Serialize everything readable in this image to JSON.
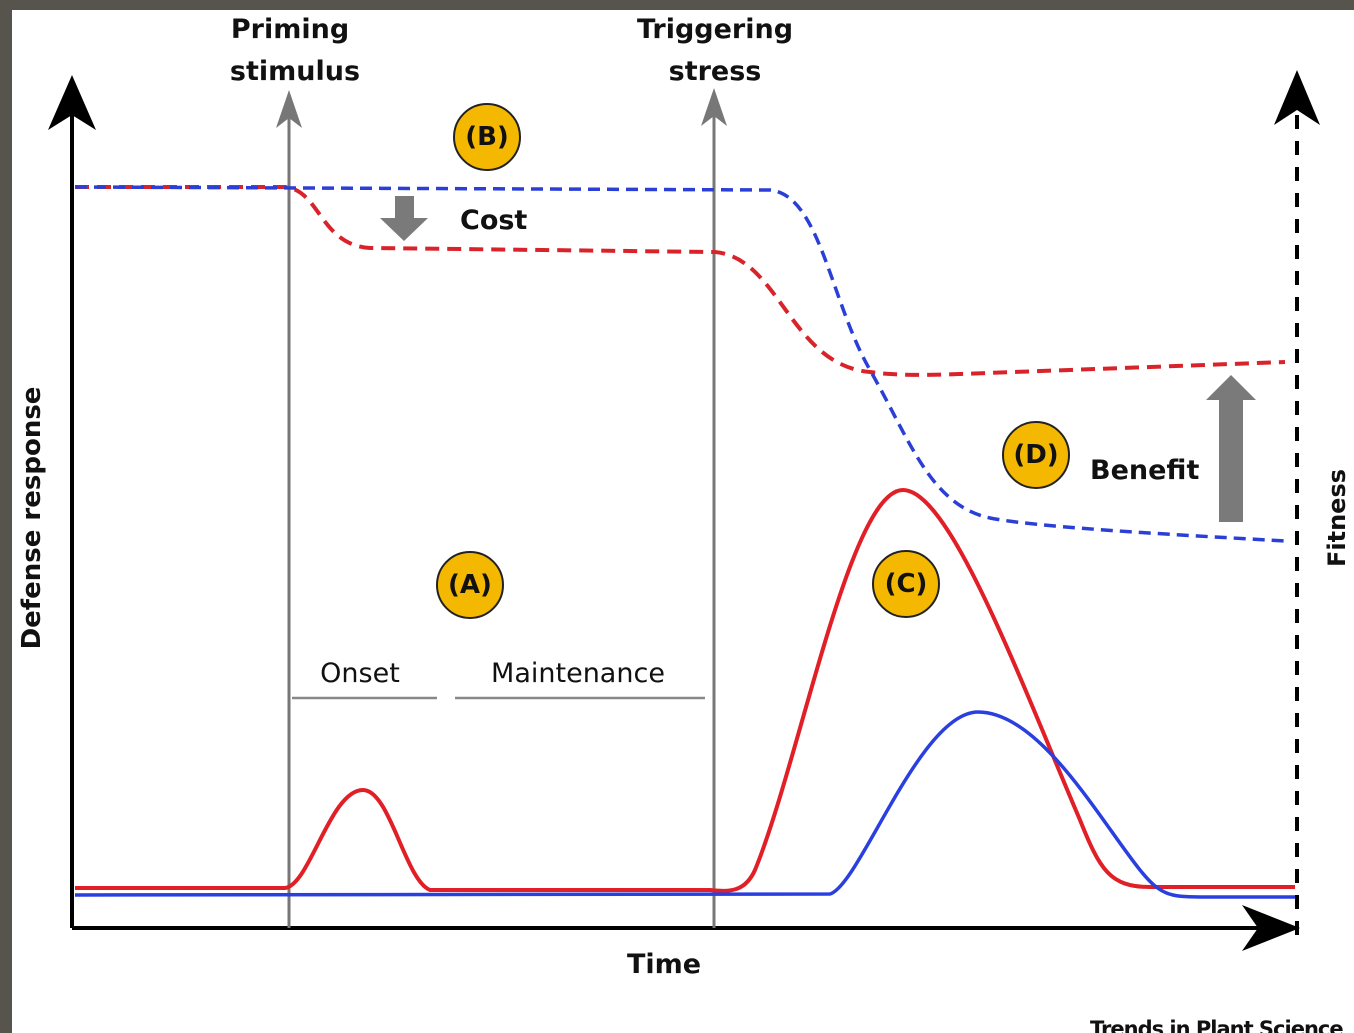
{
  "stimuli": {
    "priming": [
      "Priming",
      "stimulus"
    ],
    "triggering": [
      "Triggering",
      "stress"
    ]
  },
  "badges": {
    "a": "(A)",
    "b": "(B)",
    "c": "(C)",
    "d": "(D)"
  },
  "notes": {
    "cost": "Cost",
    "benefit": "Benefit",
    "onset": "Onset",
    "maintenance": "Maintenance"
  },
  "axes": {
    "y": "Defense response",
    "x": "Time",
    "y2": "Fitness"
  },
  "credit": "Trends in Plant Science"
}
